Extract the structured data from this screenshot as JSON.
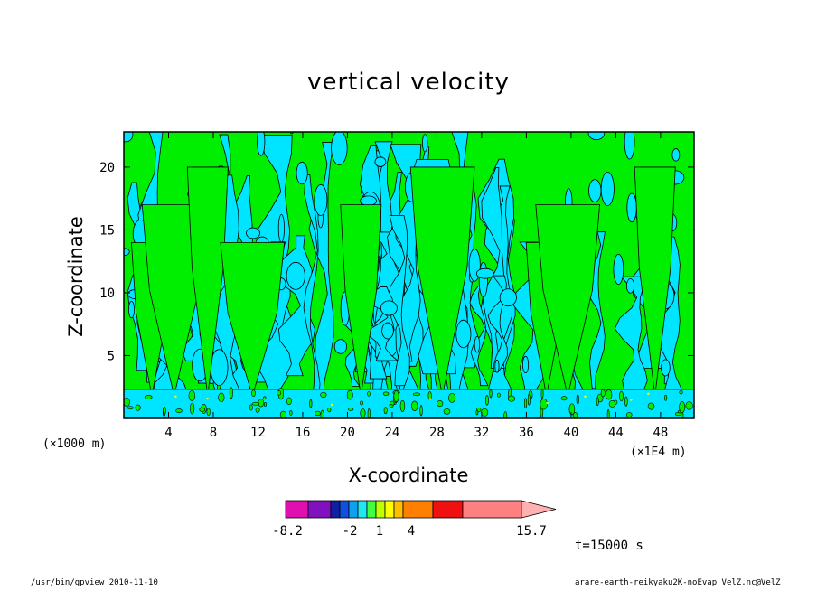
{
  "chart_data": {
    "type": "heatmap",
    "title": "vertical velocity",
    "xlabel": "X-coordinate",
    "ylabel": "Z-coordinate",
    "x_unit_left": "(×1000 m)",
    "x_unit_right": "(×1E4 m)",
    "xlim": [
      0,
      51
    ],
    "ylim": [
      0,
      22.8
    ],
    "x_ticks": [
      4,
      8,
      12,
      16,
      20,
      24,
      28,
      32,
      36,
      40,
      44,
      48
    ],
    "y_ticks": [
      5,
      10,
      15,
      20
    ],
    "updraft_cores_x": [
      2.5,
      4.5,
      7.5,
      11.5,
      21.2,
      28.5,
      37.8,
      39.7,
      47.5
    ],
    "levels": [
      -8.2,
      -2,
      1,
      4,
      15.7
    ],
    "level_labels": [
      "-8.2",
      "-2",
      "1",
      "4",
      "15.7"
    ],
    "colorbar_colors": [
      "#e010b0",
      "#8010c0",
      "#1020a0",
      "#1050e0",
      "#10a0f0",
      "#20e8f0",
      "#40ff40",
      "#c0ff00",
      "#ffff00",
      "#ffc000",
      "#ff8000",
      "#ff7000",
      "#f01010",
      "#ff8080"
    ],
    "field_colors": {
      "negative": "#00e5ff",
      "positive": "#00ee00",
      "strong_positive": "#ffff00"
    },
    "time_label": "t=15000 s",
    "grid": false
  },
  "footer": {
    "left": "/usr/bin/gpview   2010-11-10",
    "right": "arare-earth-reikyaku2K-noEvap_VelZ.nc@VelZ"
  }
}
